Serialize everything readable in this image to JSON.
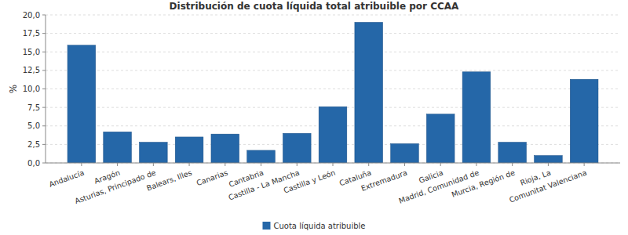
{
  "chart_data": {
    "type": "bar",
    "title": "Distribución de cuota líquida total atribuible por CCAA",
    "y_label": "%",
    "categories": [
      "Andalucía",
      "Aragón",
      "Asturias, Principado de",
      "Balears, Illes",
      "Canarias",
      "Cantabria",
      "Castilla - La Mancha",
      "Castilla y León",
      "Cataluña",
      "Extremadura",
      "Galicia",
      "Madrid, Comunidad de",
      "Murcia, Región de",
      "Rioja, La",
      "Comunitat Valenciana"
    ],
    "series": [
      {
        "name": "Cuota líquida atribuible",
        "color": "#2567a8",
        "values": [
          15.9,
          4.2,
          2.8,
          3.5,
          3.9,
          1.7,
          4.0,
          7.6,
          19.0,
          2.6,
          6.6,
          12.3,
          2.8,
          1.0,
          11.3
        ]
      }
    ],
    "ylim": [
      0,
      20
    ],
    "yticks": [
      {
        "value": 0,
        "label": "0,0"
      },
      {
        "value": 2.5,
        "label": "2,5"
      },
      {
        "value": 5,
        "label": "5,0"
      },
      {
        "value": 7.5,
        "label": "7,5"
      },
      {
        "value": 10,
        "label": "10,0"
      },
      {
        "value": 12.5,
        "label": "12,5"
      },
      {
        "value": 15,
        "label": "15,0"
      },
      {
        "value": 17.5,
        "label": "17,5"
      },
      {
        "value": 20,
        "label": "20,0"
      }
    ],
    "grid": true,
    "legend": "bottom"
  }
}
